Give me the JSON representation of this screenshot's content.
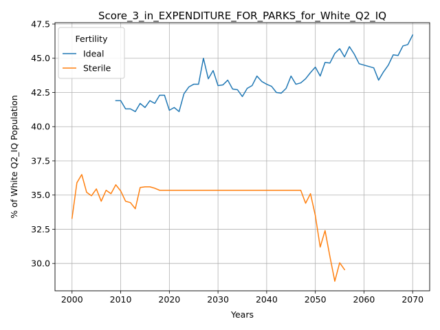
{
  "chart_data": {
    "type": "line",
    "title": "Score_3_in_EXPENDITURE_FOR_PARKS_for_White_Q2_IQ",
    "xlabel": "Years",
    "ylabel": "% of White Q2_IQ Population",
    "xlim": [
      1996.5,
      2073.5
    ],
    "ylim": [
      28.0,
      47.6
    ],
    "grid": true,
    "legend": {
      "title": "Fertility",
      "placement": "top-left"
    },
    "x_ticks": [
      2000,
      2010,
      2020,
      2030,
      2040,
      2050,
      2060,
      2070
    ],
    "x_tick_labels": [
      "2000",
      "2010",
      "2020",
      "2030",
      "2040",
      "2050",
      "2060",
      "2070"
    ],
    "y_ticks": [
      30.0,
      32.5,
      35.0,
      37.5,
      40.0,
      42.5,
      45.0,
      47.5
    ],
    "y_tick_labels": [
      "30.0",
      "32.5",
      "35.0",
      "37.5",
      "40.0",
      "42.5",
      "45.0",
      "47.5"
    ],
    "series": [
      {
        "name": "Ideal",
        "color": "#1f77b4",
        "x": [
          2009,
          2010,
          2011,
          2012,
          2013,
          2014,
          2015,
          2016,
          2017,
          2018,
          2019,
          2020,
          2021,
          2022,
          2023,
          2024,
          2025,
          2026,
          2027,
          2028,
          2029,
          2030,
          2031,
          2032,
          2033,
          2034,
          2035,
          2036,
          2037,
          2038,
          2039,
          2040,
          2041,
          2042,
          2043,
          2044,
          2045,
          2046,
          2047,
          2048,
          2049,
          2050,
          2051,
          2052,
          2053,
          2054,
          2055,
          2056,
          2057,
          2058,
          2059,
          2060,
          2061,
          2062,
          2063,
          2064,
          2065,
          2066,
          2067,
          2068,
          2069,
          2070
        ],
        "y": [
          41.9,
          41.9,
          41.3,
          41.3,
          41.1,
          41.7,
          41.4,
          41.9,
          41.7,
          42.3,
          42.3,
          41.2,
          41.4,
          41.1,
          42.4,
          42.9,
          43.1,
          43.1,
          45.0,
          43.5,
          44.1,
          43.0,
          43.05,
          43.4,
          42.75,
          42.7,
          42.2,
          42.8,
          43.0,
          43.7,
          43.3,
          43.1,
          42.95,
          42.5,
          42.45,
          42.8,
          43.7,
          43.1,
          43.2,
          43.5,
          43.95,
          44.35,
          43.7,
          44.7,
          44.65,
          45.35,
          45.7,
          45.1,
          45.85,
          45.3,
          44.6,
          44.5,
          44.4,
          44.3,
          43.4,
          44.0,
          44.5,
          45.25,
          45.2,
          45.9,
          46.0,
          46.7
        ]
      },
      {
        "name": "Sterile",
        "color": "#ff7f0e",
        "x": [
          2000,
          2001,
          2002,
          2003,
          2004,
          2005,
          2006,
          2007,
          2008,
          2009,
          2010,
          2011,
          2012,
          2013,
          2014,
          2015,
          2016,
          2017,
          2018,
          2019,
          2020,
          2021,
          2022,
          2023,
          2024,
          2025,
          2026,
          2027,
          2028,
          2029,
          2030,
          2031,
          2032,
          2033,
          2034,
          2035,
          2036,
          2037,
          2038,
          2039,
          2040,
          2041,
          2042,
          2043,
          2044,
          2045,
          2046,
          2047,
          2048,
          2049,
          2050,
          2051,
          2052,
          2053,
          2054,
          2055,
          2056
        ],
        "y": [
          33.3,
          35.9,
          36.5,
          35.2,
          34.95,
          35.45,
          34.55,
          35.35,
          35.1,
          35.75,
          35.3,
          34.55,
          34.45,
          34.0,
          35.55,
          35.6,
          35.6,
          35.5,
          35.35,
          35.35,
          35.35,
          35.35,
          35.35,
          35.35,
          35.35,
          35.35,
          35.35,
          35.35,
          35.35,
          35.35,
          35.35,
          35.35,
          35.35,
          35.35,
          35.35,
          35.35,
          35.35,
          35.35,
          35.35,
          35.35,
          35.35,
          35.35,
          35.35,
          35.35,
          35.35,
          35.35,
          35.35,
          35.35,
          34.4,
          35.1,
          33.5,
          31.2,
          32.4,
          30.5,
          28.7,
          30.05,
          29.55
        ]
      }
    ]
  }
}
